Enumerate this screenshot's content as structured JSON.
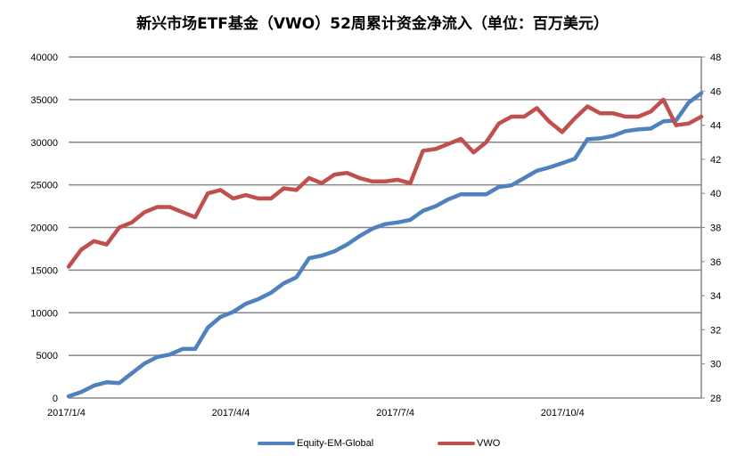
{
  "title": "新兴市场ETF基金（VWO）52周累计资金净流入（单位：百万美元）",
  "colors": {
    "series1": "#4F81BD",
    "series2": "#C0504D",
    "grid": "#868686",
    "axis": "#868686"
  },
  "legend": [
    {
      "label": "Equity-EM-Global",
      "color": "#4F81BD"
    },
    {
      "label": "VWO",
      "color": "#C0504D"
    }
  ],
  "x_ticks": [
    "2017/1/4",
    "2017/4/4",
    "2017/7/4",
    "2017/10/4"
  ],
  "y_left_ticks": [
    "0",
    "5000",
    "10000",
    "15000",
    "20000",
    "25000",
    "30000",
    "35000",
    "40000"
  ],
  "y_right_ticks": [
    "28",
    "30",
    "32",
    "34",
    "36",
    "38",
    "40",
    "42",
    "44",
    "46",
    "48"
  ],
  "chart_data": {
    "type": "line",
    "title": "新兴市场ETF基金（VWO）52周累计资金净流入（单位：百万美元）",
    "xlabel": "",
    "ylabel": "",
    "x_tick_labels": [
      "2017/1/4",
      "2017/4/4",
      "2017/7/4",
      "2017/10/4"
    ],
    "x": [
      "2017-01-04",
      "2017-01-11",
      "2017-01-18",
      "2017-01-25",
      "2017-02-01",
      "2017-02-08",
      "2017-02-15",
      "2017-02-22",
      "2017-03-01",
      "2017-03-08",
      "2017-03-15",
      "2017-03-22",
      "2017-03-29",
      "2017-04-05",
      "2017-04-12",
      "2017-04-19",
      "2017-04-26",
      "2017-05-03",
      "2017-05-10",
      "2017-05-17",
      "2017-05-24",
      "2017-05-31",
      "2017-06-07",
      "2017-06-14",
      "2017-06-21",
      "2017-06-28",
      "2017-07-05",
      "2017-07-12",
      "2017-07-19",
      "2017-07-26",
      "2017-08-02",
      "2017-08-09",
      "2017-08-16",
      "2017-08-23",
      "2017-08-30",
      "2017-09-06",
      "2017-09-13",
      "2017-09-20",
      "2017-09-27",
      "2017-10-04",
      "2017-10-11",
      "2017-10-18",
      "2017-10-25",
      "2017-11-01",
      "2017-11-08",
      "2017-11-15",
      "2017-11-22",
      "2017-11-29",
      "2017-12-06",
      "2017-12-13",
      "2017-12-20"
    ],
    "ylim": [
      0,
      40000
    ],
    "y2lim": [
      28,
      48
    ],
    "grid": true,
    "legend_position": "bottom",
    "series": [
      {
        "name": "Equity-EM-Global",
        "axis": "left",
        "color": "#4F81BD",
        "values": [
          200,
          700,
          1450,
          1850,
          1750,
          2900,
          4050,
          4800,
          5100,
          5750,
          5750,
          8250,
          9500,
          10100,
          11050,
          11600,
          12350,
          13450,
          14150,
          16400,
          16700,
          17200,
          18000,
          19000,
          19850,
          20400,
          20600,
          20900,
          21950,
          22500,
          23300,
          23900,
          23900,
          23900,
          24750,
          24950,
          25800,
          26650,
          27050,
          27550,
          28050,
          30350,
          30450,
          30750,
          31300,
          31500,
          31600,
          32450,
          32550,
          34650,
          35750
        ]
      },
      {
        "name": "VWO",
        "axis": "right",
        "color": "#C0504D",
        "values": [
          35.7,
          36.7,
          37.2,
          37.0,
          38.0,
          38.3,
          38.9,
          39.2,
          39.2,
          38.9,
          38.6,
          40.0,
          40.2,
          39.7,
          39.9,
          39.7,
          39.7,
          40.3,
          40.2,
          40.9,
          40.6,
          41.1,
          41.2,
          40.9,
          40.7,
          40.7,
          40.8,
          40.6,
          42.5,
          42.6,
          42.9,
          43.2,
          42.4,
          43.0,
          44.1,
          44.5,
          44.5,
          45.0,
          44.2,
          43.6,
          44.4,
          45.1,
          44.7,
          44.7,
          44.5,
          44.5,
          44.8,
          45.5,
          44.0,
          44.1,
          44.5
        ]
      }
    ]
  }
}
